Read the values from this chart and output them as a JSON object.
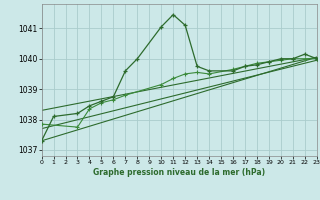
{
  "bg_color": "#cce8e8",
  "grid_color": "#aacccc",
  "line_color": "#2d6b2d",
  "line_color2": "#3a8a3a",
  "xlabel": "Graphe pression niveau de la mer (hPa)",
  "ylim": [
    1036.8,
    1041.8
  ],
  "xlim": [
    0,
    23
  ],
  "yticks": [
    1037,
    1038,
    1039,
    1040,
    1041
  ],
  "xticks": [
    0,
    1,
    2,
    3,
    4,
    5,
    6,
    7,
    8,
    9,
    10,
    11,
    12,
    13,
    14,
    15,
    16,
    17,
    18,
    19,
    20,
    21,
    22,
    23
  ],
  "series1_x": [
    0,
    1,
    3,
    4,
    5,
    6,
    7,
    8,
    10,
    11,
    12,
    13,
    14,
    16,
    17,
    18,
    19,
    20,
    21,
    22,
    23
  ],
  "series1_y": [
    1037.3,
    1038.1,
    1038.2,
    1038.45,
    1038.6,
    1038.75,
    1039.6,
    1040.0,
    1041.05,
    1041.45,
    1041.1,
    1039.75,
    1039.6,
    1039.6,
    1039.75,
    1039.8,
    1039.9,
    1040.0,
    1040.0,
    1040.15,
    1040.0
  ],
  "series2_x": [
    0,
    3,
    4,
    5,
    6,
    7,
    10,
    11,
    12,
    13,
    14,
    16,
    17,
    18,
    19,
    20,
    21,
    22,
    23
  ],
  "series2_y": [
    1037.85,
    1037.75,
    1038.35,
    1038.55,
    1038.65,
    1038.8,
    1039.15,
    1039.35,
    1039.5,
    1039.55,
    1039.5,
    1039.65,
    1039.75,
    1039.85,
    1039.9,
    1039.95,
    1040.0,
    1040.0,
    1040.0
  ],
  "series3_x": [
    0,
    23
  ],
  "series3_y": [
    1038.3,
    1040.05
  ],
  "series4_x": [
    0,
    23
  ],
  "series4_y": [
    1037.7,
    1039.95
  ],
  "series5_x": [
    0,
    23
  ],
  "series5_y": [
    1037.3,
    1040.05
  ]
}
